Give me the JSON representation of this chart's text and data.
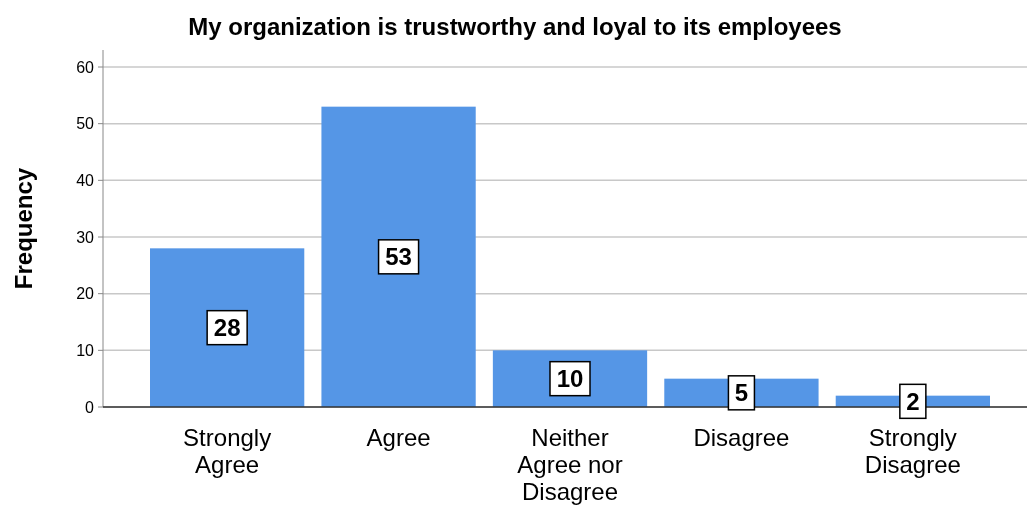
{
  "chart_data": {
    "type": "bar",
    "title": "My organization is trustworthy and loyal to its employees",
    "ylabel": "Frequency",
    "categories": [
      "Strongly Agree",
      "Agree",
      "Neither Agree nor Disagree",
      "Disagree",
      "Strongly Disagree"
    ],
    "values": [
      28,
      53,
      10,
      5,
      2
    ],
    "color": "#5596e6",
    "ylim": [
      0,
      63
    ],
    "yticks": [
      0,
      10,
      20,
      30,
      40,
      50,
      60
    ],
    "grid": "y",
    "data_labels": true
  }
}
